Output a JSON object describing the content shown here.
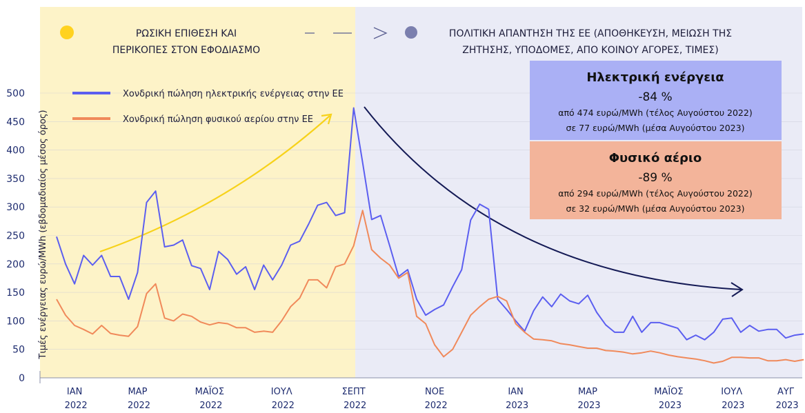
{
  "chart_data": {
    "type": "line",
    "y_label": "Τιμές ενέργειας ευρώ/MWh (εβδομαδιαίος μέσος όρος)",
    "ylim": [
      0,
      500
    ],
    "yticks": [
      0,
      50,
      100,
      150,
      200,
      250,
      300,
      350,
      400,
      450,
      500
    ],
    "grid": true,
    "categories": [
      null,
      null,
      "ΙΑΝ 2022",
      null,
      null,
      null,
      null,
      null,
      null,
      "ΜΑΡ 2022",
      null,
      null,
      null,
      null,
      null,
      null,
      null,
      "ΜΑΪΟΣ 2022",
      null,
      null,
      null,
      null,
      null,
      null,
      null,
      "ΙΟΥΛ 2022",
      null,
      null,
      null,
      null,
      null,
      null,
      null,
      "ΣΕΠΤ 2022",
      null,
      null,
      null,
      null,
      null,
      null,
      null,
      null,
      "ΝΟΕ 2022",
      null,
      null,
      null,
      null,
      null,
      null,
      null,
      null,
      "ΙΑΝ 2023",
      null,
      null,
      null,
      null,
      null,
      null,
      null,
      "ΜΑΡ 2023",
      null,
      null,
      null,
      null,
      null,
      null,
      null,
      null,
      "ΜΑΪΟΣ 2023",
      null,
      null,
      null,
      null,
      null,
      null,
      "ΙΟΥΛ 2023",
      null,
      null,
      null,
      null,
      null,
      "ΑΥΓ 2023",
      null,
      null
    ],
    "series": [
      {
        "name": "Χονδρική πώληση ηλεκτρικής ενέργειας στην ΕΕ",
        "color": "#5b5ef0",
        "values": [
          248,
          200,
          165,
          215,
          198,
          215,
          178,
          178,
          138,
          185,
          308,
          328,
          230,
          233,
          242,
          197,
          192,
          155,
          222,
          208,
          182,
          195,
          155,
          198,
          172,
          198,
          233,
          240,
          270,
          303,
          308,
          285,
          290,
          474,
          378,
          278,
          285,
          232,
          178,
          190,
          138,
          110,
          120,
          128,
          160,
          190,
          277,
          305,
          296,
          138,
          120,
          100,
          82,
          118,
          142,
          125,
          147,
          135,
          130,
          145,
          115,
          93,
          80,
          80,
          108,
          80,
          97,
          97,
          92,
          87,
          67,
          75,
          67,
          80,
          103,
          105,
          80,
          92,
          82,
          85,
          85,
          70,
          75,
          77
        ]
      },
      {
        "name": "Χονδρική πώληση φυσικού αερίου στην ΕΕ",
        "color": "#f0895a",
        "values": [
          138,
          110,
          92,
          85,
          77,
          92,
          78,
          75,
          73,
          90,
          148,
          165,
          105,
          100,
          112,
          108,
          98,
          93,
          97,
          95,
          88,
          88,
          80,
          82,
          80,
          100,
          125,
          140,
          172,
          172,
          158,
          195,
          200,
          232,
          294,
          225,
          210,
          198,
          175,
          185,
          108,
          95,
          58,
          37,
          50,
          80,
          110,
          125,
          138,
          143,
          135,
          95,
          80,
          68,
          67,
          65,
          60,
          58,
          55,
          52,
          52,
          48,
          47,
          45,
          42,
          44,
          47,
          44,
          40,
          37,
          35,
          33,
          30,
          26,
          29,
          36,
          36,
          35,
          35,
          30,
          30,
          32,
          29,
          32
        ]
      }
    ],
    "annotations": {
      "phases": [
        {
          "lines": [
            "ΡΩΣΙΚΗ ΕΠΙΘΕΣΗ ΚΑΙ",
            "ΠΕΡΙΚΟΠΕΣ ΣΤΟΝ ΕΦΟΔΙΑΣΜΟ"
          ]
        },
        {
          "lines": [
            "ΠΟΛΙΤΙΚΗ ΑΠΑΝΤΗΣΗ ΤΗΣ ΕΕ (ΑΠΟΘΗΚΕΥΣΗ, ΜΕΙΩΣΗ ΤΗΣ",
            "ΖΗΤΗΣΗΣ, ΥΠΟΔΟΜΕΣ, ΑΠΟ ΚΟΙΝΟΥ ΑΓΟΡΕΣ, ΤΙΜΕΣ)"
          ]
        }
      ],
      "boxes": [
        {
          "title": "Ηλεκτρική ενέργεια",
          "change": "-84 %",
          "lines": [
            "από 474 ευρώ/MWh (τέλος Αυγούστου 2022)",
            "σε 77 ευρώ/MWh (μέσα Αυγούστου 2023)"
          ]
        },
        {
          "title": "Φυσικό αέριο",
          "change": "-89 %",
          "lines": [
            "από 294 ευρώ/MWh (τέλος Αυγούστου 2022)",
            "σε 32 ευρώ/MWh (μέσα Αυγούστου 2023)"
          ]
        }
      ]
    }
  }
}
